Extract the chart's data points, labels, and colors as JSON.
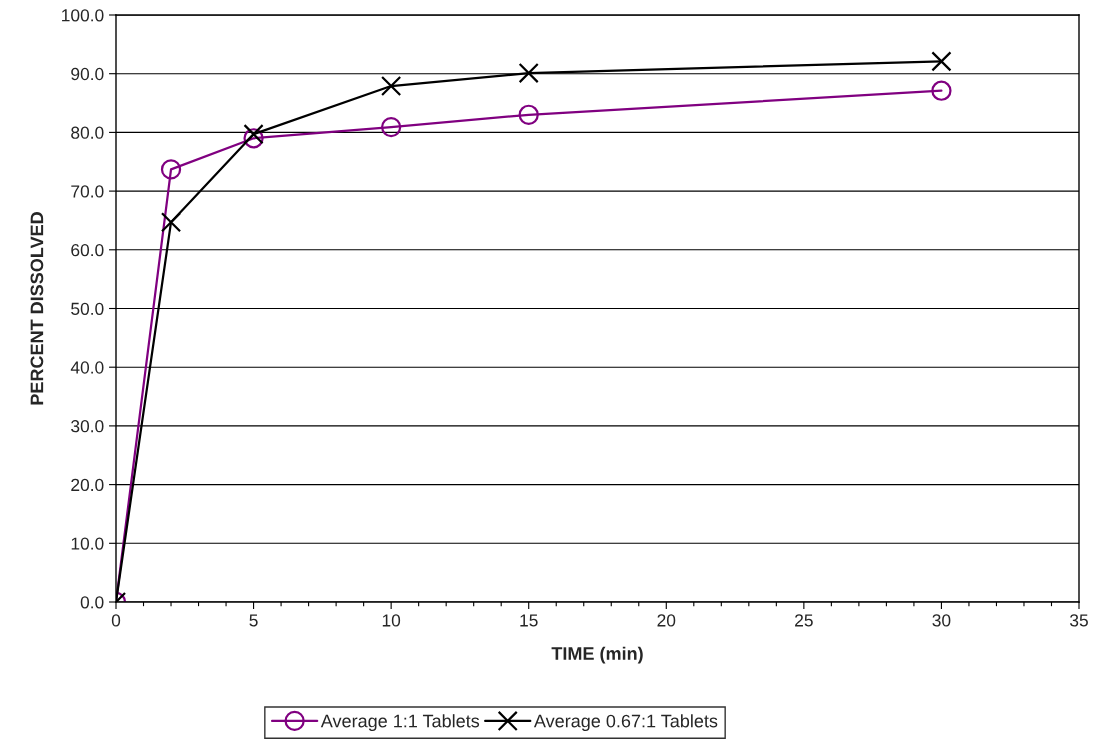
{
  "chart_data": {
    "type": "line",
    "xlabel": "TIME (min)",
    "ylabel": "PERCENT DISSOLVED",
    "series": [
      {
        "name": "Average 1:1 Tablets",
        "color": "#800080",
        "marker": "circle",
        "x": [
          0,
          2,
          5,
          10,
          15,
          30
        ],
        "values": [
          0,
          73.7,
          79.0,
          80.9,
          83.0,
          87.1
        ]
      },
      {
        "name": "Average 0.67:1 Tablets",
        "color": "#000000",
        "marker": "cross",
        "x": [
          0,
          2,
          5,
          10,
          15,
          30
        ],
        "values": [
          0,
          64.7,
          79.7,
          87.9,
          90.1,
          92.1
        ]
      }
    ],
    "xlim": [
      0,
      35
    ],
    "xticks": [
      0,
      {
        "value": 1,
        "label": null
      },
      {
        "value": 2,
        "label": null
      },
      {
        "value": 3,
        "label": null
      },
      {
        "value": 4,
        "label": null
      },
      5,
      {
        "value": 6,
        "label": null
      },
      {
        "value": 7,
        "label": null
      },
      {
        "value": 8,
        "label": null
      },
      {
        "value": 9,
        "label": null
      },
      10,
      {
        "value": 11,
        "label": null
      },
      {
        "value": 12,
        "label": null
      },
      {
        "value": 13,
        "label": null
      },
      {
        "value": 14,
        "label": null
      },
      15,
      {
        "value": 16,
        "label": null
      },
      {
        "value": 17,
        "label": null
      },
      {
        "value": 18,
        "label": null
      },
      {
        "value": 19,
        "label": null
      },
      20,
      {
        "value": 21,
        "label": null
      },
      {
        "value": 22,
        "label": null
      },
      {
        "value": 23,
        "label": null
      },
      {
        "value": 24,
        "label": null
      },
      25,
      {
        "value": 26,
        "label": null
      },
      {
        "value": 27,
        "label": null
      },
      {
        "value": 28,
        "label": null
      },
      {
        "value": 29,
        "label": null
      },
      30,
      {
        "value": 31,
        "label": null
      },
      {
        "value": 32,
        "label": null
      },
      {
        "value": 33,
        "label": null
      },
      {
        "value": 34,
        "label": null
      },
      35
    ],
    "ylim": [
      0,
      100
    ],
    "yticks": [
      {
        "value": 0,
        "label": "0.0"
      },
      {
        "value": 10,
        "label": "10.0"
      },
      {
        "value": 20,
        "label": "20.0"
      },
      {
        "value": 30,
        "label": "30.0"
      },
      {
        "value": 40,
        "label": "40.0"
      },
      {
        "value": 50,
        "label": "50.0"
      },
      {
        "value": 60,
        "label": "60.0"
      },
      {
        "value": 70,
        "label": "70.0"
      },
      {
        "value": 80,
        "label": "80.0"
      },
      {
        "value": 90,
        "label": "90.0"
      },
      {
        "value": 100,
        "label": "100.0"
      }
    ],
    "grid": "y",
    "legend": "bottom",
    "line_style": "solid"
  }
}
